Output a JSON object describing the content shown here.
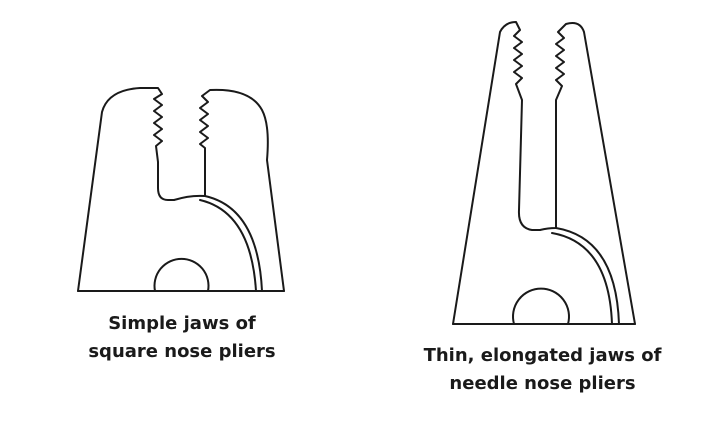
{
  "figures": [
    {
      "id": "square-nose",
      "caption_line1": "Simple jaws of",
      "caption_line2": "square nose pliers"
    },
    {
      "id": "needle-nose",
      "caption_line1": "Thin, elongated jaws of",
      "caption_line2": "needle nose pliers"
    }
  ],
  "colors": {
    "stroke": "#1a1a1a",
    "text": "#1a1a1a",
    "background": "#ffffff"
  }
}
